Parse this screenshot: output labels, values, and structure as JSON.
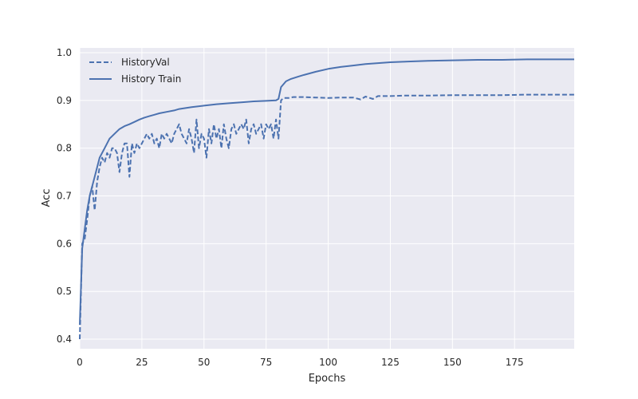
{
  "chart_data": {
    "type": "line",
    "xlabel": "Epochs",
    "ylabel": "Acc",
    "xlim": [
      0,
      199
    ],
    "ylim": [
      0.38,
      1.01
    ],
    "xticks": [
      0,
      25,
      50,
      75,
      100,
      125,
      150,
      175
    ],
    "yticks": [
      0.4,
      0.5,
      0.6,
      0.7,
      0.8,
      0.9,
      1.0
    ],
    "xtick_labels": [
      "0",
      "25",
      "50",
      "75",
      "100",
      "125",
      "150",
      "175"
    ],
    "ytick_labels": [
      "0.4",
      "0.5",
      "0.6",
      "0.7",
      "0.8",
      "0.9",
      "1.0"
    ],
    "grid": true,
    "legend_position": "top-left",
    "colors": {
      "plot_bg": "#eaeaf2",
      "grid": "#ffffff",
      "series": "#4c72b0"
    },
    "series": [
      {
        "name": "HistoryVal",
        "style": "dashed",
        "points": [
          [
            0,
            0.4
          ],
          [
            1,
            0.6
          ],
          [
            2,
            0.61
          ],
          [
            3,
            0.65
          ],
          [
            4,
            0.7
          ],
          [
            5,
            0.72
          ],
          [
            6,
            0.67
          ],
          [
            7,
            0.73
          ],
          [
            8,
            0.76
          ],
          [
            9,
            0.78
          ],
          [
            10,
            0.77
          ],
          [
            11,
            0.79
          ],
          [
            12,
            0.78
          ],
          [
            13,
            0.8
          ],
          [
            14,
            0.8
          ],
          [
            15,
            0.79
          ],
          [
            16,
            0.75
          ],
          [
            17,
            0.79
          ],
          [
            18,
            0.81
          ],
          [
            19,
            0.81
          ],
          [
            20,
            0.74
          ],
          [
            21,
            0.81
          ],
          [
            22,
            0.79
          ],
          [
            23,
            0.81
          ],
          [
            24,
            0.8
          ],
          [
            25,
            0.81
          ],
          [
            26,
            0.82
          ],
          [
            27,
            0.83
          ],
          [
            28,
            0.82
          ],
          [
            29,
            0.83
          ],
          [
            30,
            0.81
          ],
          [
            31,
            0.82
          ],
          [
            32,
            0.8
          ],
          [
            33,
            0.83
          ],
          [
            34,
            0.82
          ],
          [
            35,
            0.83
          ],
          [
            36,
            0.82
          ],
          [
            37,
            0.81
          ],
          [
            38,
            0.83
          ],
          [
            39,
            0.84
          ],
          [
            40,
            0.85
          ],
          [
            41,
            0.83
          ],
          [
            42,
            0.82
          ],
          [
            43,
            0.81
          ],
          [
            44,
            0.84
          ],
          [
            45,
            0.82
          ],
          [
            46,
            0.79
          ],
          [
            47,
            0.86
          ],
          [
            48,
            0.8
          ],
          [
            49,
            0.83
          ],
          [
            50,
            0.82
          ],
          [
            51,
            0.78
          ],
          [
            52,
            0.84
          ],
          [
            53,
            0.81
          ],
          [
            54,
            0.85
          ],
          [
            55,
            0.82
          ],
          [
            56,
            0.84
          ],
          [
            57,
            0.8
          ],
          [
            58,
            0.85
          ],
          [
            59,
            0.82
          ],
          [
            60,
            0.8
          ],
          [
            61,
            0.84
          ],
          [
            62,
            0.85
          ],
          [
            63,
            0.83
          ],
          [
            64,
            0.84
          ],
          [
            65,
            0.85
          ],
          [
            66,
            0.84
          ],
          [
            67,
            0.86
          ],
          [
            68,
            0.81
          ],
          [
            69,
            0.84
          ],
          [
            70,
            0.85
          ],
          [
            71,
            0.83
          ],
          [
            72,
            0.84
          ],
          [
            73,
            0.85
          ],
          [
            74,
            0.82
          ],
          [
            75,
            0.85
          ],
          [
            76,
            0.84
          ],
          [
            77,
            0.85
          ],
          [
            78,
            0.82
          ],
          [
            79,
            0.86
          ],
          [
            80,
            0.82
          ],
          [
            81,
            0.9
          ],
          [
            82,
            0.905
          ],
          [
            84,
            0.905
          ],
          [
            86,
            0.907
          ],
          [
            90,
            0.907
          ],
          [
            95,
            0.906
          ],
          [
            100,
            0.905
          ],
          [
            105,
            0.906
          ],
          [
            110,
            0.906
          ],
          [
            113,
            0.902
          ],
          [
            115,
            0.908
          ],
          [
            118,
            0.903
          ],
          [
            120,
            0.909
          ],
          [
            125,
            0.909
          ],
          [
            130,
            0.91
          ],
          [
            140,
            0.91
          ],
          [
            150,
            0.911
          ],
          [
            160,
            0.911
          ],
          [
            170,
            0.911
          ],
          [
            180,
            0.912
          ],
          [
            190,
            0.912
          ],
          [
            199,
            0.912
          ]
        ]
      },
      {
        "name": "History Train",
        "style": "solid",
        "points": [
          [
            0,
            0.43
          ],
          [
            1,
            0.59
          ],
          [
            2,
            0.63
          ],
          [
            3,
            0.67
          ],
          [
            4,
            0.7
          ],
          [
            5,
            0.72
          ],
          [
            6,
            0.74
          ],
          [
            7,
            0.76
          ],
          [
            8,
            0.78
          ],
          [
            10,
            0.8
          ],
          [
            12,
            0.82
          ],
          [
            14,
            0.83
          ],
          [
            16,
            0.84
          ],
          [
            18,
            0.846
          ],
          [
            20,
            0.85
          ],
          [
            22,
            0.855
          ],
          [
            24,
            0.86
          ],
          [
            26,
            0.864
          ],
          [
            28,
            0.867
          ],
          [
            30,
            0.87
          ],
          [
            32,
            0.873
          ],
          [
            35,
            0.876
          ],
          [
            38,
            0.879
          ],
          [
            40,
            0.882
          ],
          [
            45,
            0.886
          ],
          [
            50,
            0.889
          ],
          [
            55,
            0.892
          ],
          [
            60,
            0.894
          ],
          [
            65,
            0.896
          ],
          [
            70,
            0.898
          ],
          [
            75,
            0.899
          ],
          [
            79,
            0.9
          ],
          [
            80,
            0.903
          ],
          [
            81,
            0.928
          ],
          [
            83,
            0.94
          ],
          [
            85,
            0.945
          ],
          [
            88,
            0.95
          ],
          [
            90,
            0.953
          ],
          [
            95,
            0.96
          ],
          [
            100,
            0.966
          ],
          [
            105,
            0.97
          ],
          [
            110,
            0.973
          ],
          [
            115,
            0.976
          ],
          [
            120,
            0.978
          ],
          [
            125,
            0.98
          ],
          [
            130,
            0.981
          ],
          [
            140,
            0.983
          ],
          [
            150,
            0.984
          ],
          [
            160,
            0.985
          ],
          [
            170,
            0.985
          ],
          [
            180,
            0.986
          ],
          [
            190,
            0.986
          ],
          [
            199,
            0.986
          ]
        ]
      }
    ]
  }
}
